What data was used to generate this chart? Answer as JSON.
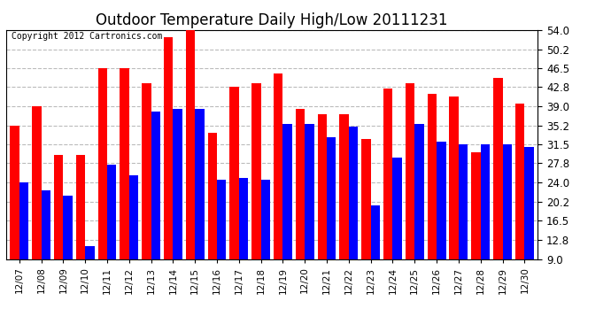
{
  "title": "Outdoor Temperature Daily High/Low 20111231",
  "copyright": "Copyright 2012 Cartronics.com",
  "dates": [
    "12/07",
    "12/08",
    "12/09",
    "12/10",
    "12/11",
    "12/12",
    "12/13",
    "12/14",
    "12/15",
    "12/16",
    "12/17",
    "12/18",
    "12/19",
    "12/20",
    "12/21",
    "12/22",
    "12/23",
    "12/24",
    "12/25",
    "12/26",
    "12/27",
    "12/28",
    "12/29",
    "12/30"
  ],
  "highs": [
    35.2,
    39.0,
    29.5,
    29.5,
    46.5,
    46.5,
    43.5,
    52.5,
    54.0,
    33.8,
    42.8,
    43.5,
    45.5,
    38.5,
    37.5,
    37.5,
    32.5,
    42.5,
    43.5,
    41.5,
    41.0,
    30.0,
    44.5,
    39.5
  ],
  "lows": [
    24.0,
    22.5,
    21.5,
    11.5,
    27.5,
    25.5,
    38.0,
    38.5,
    38.5,
    24.5,
    25.0,
    24.5,
    35.5,
    35.5,
    33.0,
    35.0,
    19.5,
    29.0,
    35.5,
    32.0,
    31.5,
    31.5,
    31.5,
    31.0
  ],
  "high_color": "#ff0000",
  "low_color": "#0000ff",
  "bg_color": "#ffffff",
  "yticks": [
    9.0,
    12.8,
    16.5,
    20.2,
    24.0,
    27.8,
    31.5,
    35.2,
    39.0,
    42.8,
    46.5,
    50.2,
    54.0
  ],
  "ymin": 9.0,
  "ymax": 54.0,
  "grid_color": "#bbbbbb",
  "title_fontsize": 12,
  "copyright_fontsize": 7,
  "bar_width": 0.42
}
